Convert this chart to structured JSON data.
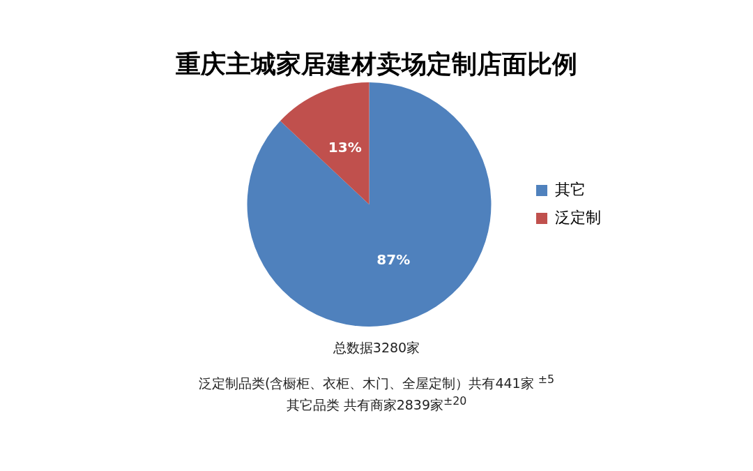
{
  "chart_data": {
    "type": "pie",
    "title": "重庆主城家居建材卖场定制店面比例",
    "categories": [
      "其它",
      "泛定制"
    ],
    "values": [
      87,
      13
    ],
    "colors": [
      "#4f81bd",
      "#c0504d"
    ],
    "value_labels": [
      "87%",
      "13%"
    ],
    "legend": "right",
    "annotations": [
      "总数据3280家",
      "泛定制品类(含橱柜、衣柜、木门、全屋定制）共有441家 $^{±5}$",
      "其它品类 共有商家2839家$^{±20}$"
    ]
  }
}
